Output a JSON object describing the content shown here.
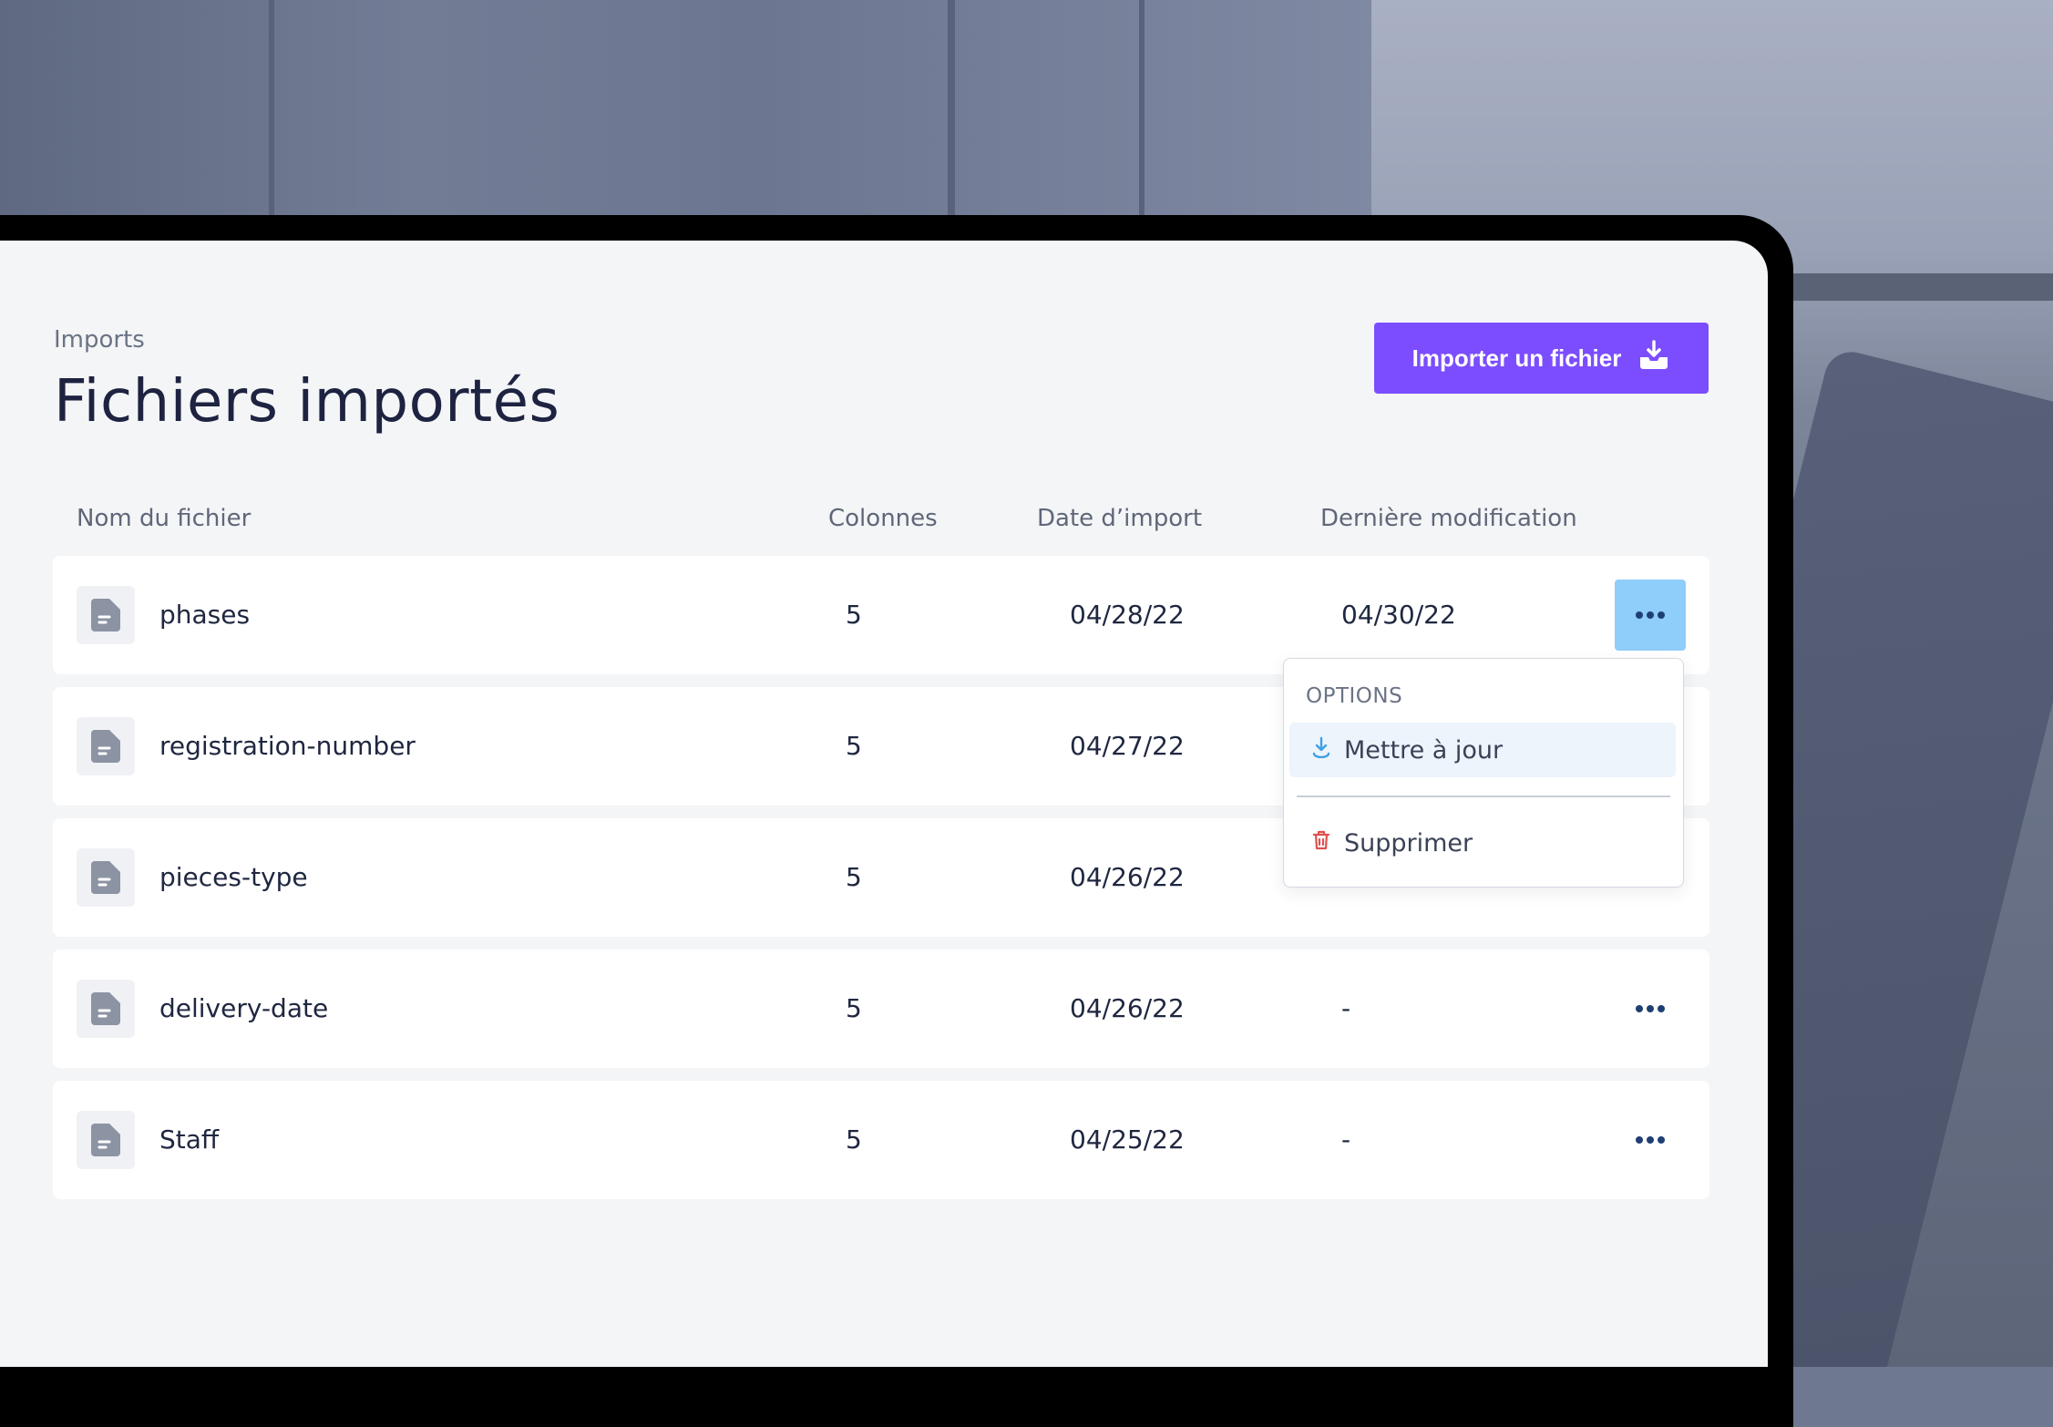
{
  "page": {
    "breadcrumb": "Imports",
    "title": "Fichiers importés",
    "import_button": {
      "label": "Importer un fichier",
      "icon": "download-tray-icon"
    }
  },
  "table": {
    "columns": [
      "Nom du fichier",
      "Colonnes",
      "Date d’import",
      "Dernière modification"
    ],
    "rows": [
      {
        "name": "phases",
        "columns": "5",
        "import_date": "04/28/22",
        "modified": "04/30/22"
      },
      {
        "name": "registration-number",
        "columns": "5",
        "import_date": "04/27/22",
        "modified": ""
      },
      {
        "name": "pieces-type",
        "columns": "5",
        "import_date": "04/26/22",
        "modified": ""
      },
      {
        "name": "delivery-date",
        "columns": "5",
        "import_date": "04/26/22",
        "modified": "-"
      },
      {
        "name": "Staff",
        "columns": "5",
        "import_date": "04/25/22",
        "modified": "-"
      }
    ]
  },
  "dropdown": {
    "header": "OPTIONS",
    "items": [
      {
        "label": "Mettre à jour",
        "icon": "download-arrow-icon",
        "color": "#3fa0e6"
      },
      {
        "label": "Supprimer",
        "icon": "trash-icon",
        "color": "#e0504f"
      }
    ]
  },
  "colors": {
    "accent": "#7c4dff",
    "menu_active": "#8fcdfb",
    "title": "#1d2340"
  }
}
